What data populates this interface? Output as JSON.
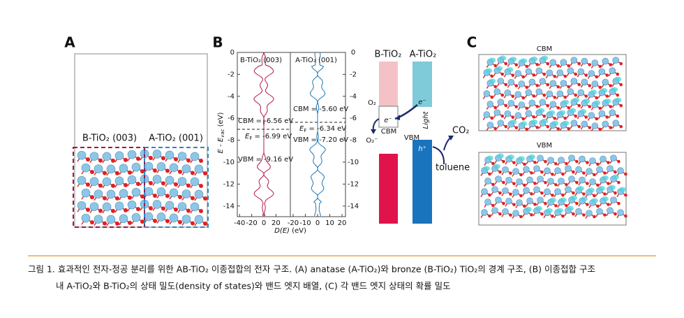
{
  "panels": {
    "a": {
      "label": "A",
      "b_interface": "B-TiO₂ (003)",
      "a_interface": "A-TiO₂ (001)"
    },
    "b": {
      "label": "B",
      "dos_b_title": "B-TiO₂ (003)",
      "dos_a_title": "A-TiO₂ (001)",
      "y_label": {
        "main": "E - E",
        "sub": "vac",
        "unit": " (eV)"
      },
      "x_label": {
        "main": "D(E)",
        "unit": " (eV)"
      },
      "y_ticks": [
        0,
        -2,
        -4,
        -6,
        -8,
        -10,
        -12,
        -14
      ],
      "x_ticks_left": [
        -40,
        -20,
        0,
        20
      ],
      "x_ticks_right": [
        -20,
        -10,
        0,
        10,
        20
      ],
      "cbm_b": "CBM = -6.56 eV",
      "ef_b": {
        "main": "E",
        "sub": "F",
        "rest": " = -6.99 eV"
      },
      "vbm_b": "VBM = -9.16 eV",
      "cbm_a": "CBM = -5.60 eV",
      "ef_a": {
        "main": "E",
        "sub": "F",
        "rest": " = -6.34 eV"
      },
      "vbm_a": "VBM = -7.20 eV",
      "band_b_title": "B-TiO₂",
      "band_a_title": "A-TiO₂",
      "o2": "O₂",
      "o2_minus": "O₂⁻",
      "e_b": "e⁻",
      "cbm": "CBM",
      "e_a": "e⁻",
      "light": "Light",
      "vbm": "VBM",
      "h": "h⁺",
      "co2": "CO₂",
      "toluene": "toluene"
    },
    "c": {
      "label": "C",
      "cbm": "CBM",
      "vbm": "VBM"
    }
  },
  "caption": [
    "그림 1. 효과적인 전자-정공 분리를 위한 AB-TiO₂ 이종접합의 전자 구조. (A) anatase (A-TiO₂)와 bronze (B-TiO₂) TiO₂의 경계 구조, (B) 이종접합 구조",
    "내 A-TiO₂와 B-TiO₂의 상태 밀도(density of states)와 밴드 엣지 배열, (C) 각 밴드 엣지 상태의 확률 밀도"
  ]
}
